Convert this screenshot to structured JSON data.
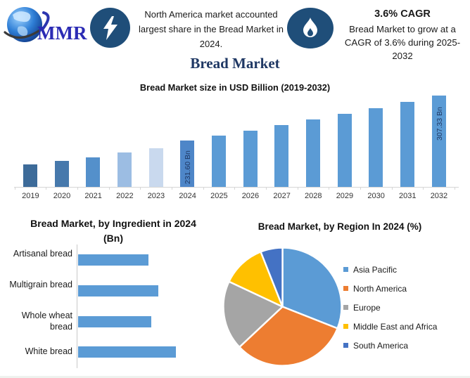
{
  "header": {
    "logo_text": "MMR",
    "highlight": "North America market accounted largest share in the Bread Market in 2024.",
    "cagr_title": "3.6% CAGR",
    "cagr_text": "Bread Market to grow at a CAGR of 3.6% during 2025-2032",
    "icons": {
      "globe-icon": "globe with orbit swoosh",
      "lightning-icon": "white bolt in dark blue circle",
      "flame-icon": "white flame in dark blue circle"
    }
  },
  "page_title": "Bread Market",
  "colors": {
    "navy_text": "#1F3864",
    "badge_blue": "#1F4E79",
    "default_bar": "#5B9BD5",
    "axis_gray": "#d6d6d6"
  },
  "chart_data": [
    {
      "type": "bar",
      "title": "Bread Market size in USD Billion (2019-2032)",
      "categories": [
        "2019",
        "2020",
        "2021",
        "2022",
        "2023",
        "2024",
        "2025",
        "2026",
        "2027",
        "2028",
        "2029",
        "2030",
        "2031",
        "2032"
      ],
      "values": [
        191.7,
        197.6,
        203.5,
        211.7,
        218.8,
        231.6,
        239.94,
        248.58,
        257.53,
        266.8,
        276.4,
        286.35,
        296.66,
        307.33
      ],
      "data_labels": {
        "2024": "231.60 Bn",
        "2032": "307.33 Bn"
      },
      "bar_colors": [
        "#3D6B99",
        "#4779AC",
        "#5490CB",
        "#9CBDE3",
        "#C9D9EE",
        "#4E86C8",
        "#5B9BD5",
        "#5B9BD5",
        "#5B9BD5",
        "#5B9BD5",
        "#5B9BD5",
        "#5B9BD5",
        "#5B9BD5",
        "#5B9BD5"
      ],
      "ylabel": "USD Billion",
      "ylim": [
        154,
        312
      ],
      "grid": false,
      "note": "values for unlabeled bars estimated from bar heights; 2024 and 2032 labeled on chart"
    },
    {
      "type": "bar",
      "orientation": "horizontal",
      "title": "Bread Market, by Ingredient in 2024",
      "title_line2": "(Bn)",
      "categories": [
        "Artisanal bread",
        "Multigrain bread",
        "Whole wheat bread",
        "White bread"
      ],
      "values": [
        51,
        58,
        53,
        71
      ],
      "bar_color": "#5B9BD5",
      "xlabel": "Bn",
      "grid": false,
      "note": "axis unlabeled; values estimated from relative bar lengths"
    },
    {
      "type": "pie",
      "title": "Bread Market, by Region In 2024 (%)",
      "labels": [
        "Asia Pacific",
        "North America",
        "Europe",
        "Middle East and Africa",
        "South America"
      ],
      "values": [
        31,
        32,
        19,
        12,
        6
      ],
      "colors": [
        "#5B9BD5",
        "#ED7D31",
        "#A5A5A5",
        "#FFC000",
        "#4472C4"
      ],
      "start_angle_deg": 0,
      "direction": "clockwise",
      "legend_position": "right",
      "note": "percentages estimated from slice angles"
    }
  ]
}
